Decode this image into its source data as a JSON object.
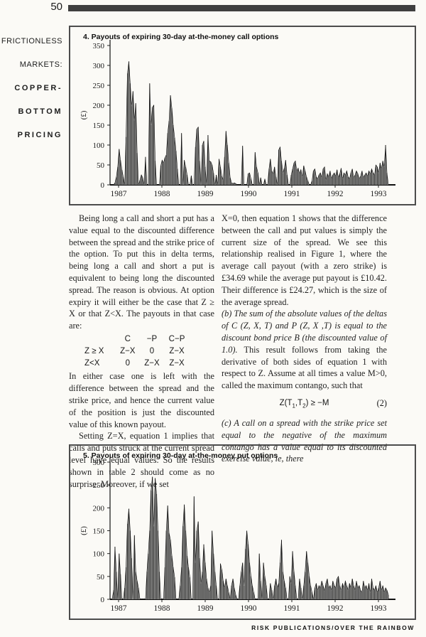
{
  "page": {
    "number": "50",
    "footer": "RISK PUBLICATIONS/OVER THE RAINBOW"
  },
  "sidebar": {
    "lines": [
      {
        "text": "FRICTIONLESS",
        "bold": false
      },
      {
        "text": "MARKETS:",
        "bold": false
      },
      {
        "text": "COPPER-",
        "bold": true
      },
      {
        "text": "BOTTOM",
        "bold": true
      },
      {
        "text": "PRICING",
        "bold": true
      }
    ]
  },
  "body": {
    "left_col": {
      "p1": "Being long a call and short a put has a value equal to the discounted difference between the spread and the strike price of the option. To put this in delta terms, being long a call and short a put is equivalent to being long the discounted spread. The reason is obvious. At option expiry it will either be the case that Z ≥ X or that Z<X. The payouts in that case are:",
      "table": {
        "headers": [
          "",
          "C",
          "−P",
          "C−P"
        ],
        "rows": [
          [
            "Z ≥ X",
            "Z−X",
            "0",
            "Z−X"
          ],
          [
            "Z<X",
            "0",
            "Z−X",
            "Z−X"
          ]
        ]
      },
      "p2": "In either case one is left with the difference between the spread and the strike price, and hence the current value of the position is just the discounted value of this known payout.",
      "p3": "Setting Z=X, equation 1 implies that calls and puts struck at the current spread level have equal values. So the results shown in table 2 should come as no surprise. Moreover, if we set"
    },
    "right_col": {
      "p4": "X=0, then equation 1 shows that the difference between the call and put values is simply the current size of the spread. We see this relationship realised in Figure 1, where the average call payout (with a zero strike) is £34.69 while the average put payout is £10.42. Their difference is £24.27, which is the size of the average spread.",
      "p5_italic": "(b) The sum of the absolute values of the deltas of C (Z, X, T) and P (Z, X ,T) is equal to the discount bond price B (the discounted value of 1.0).",
      "p5_rest": " This result follows from taking the derivative of both sides of equation 1 with respect to Z. Assume at all times a value M>0, called the maximum contango, such that",
      "equation": {
        "pre": "Z(T",
        "sub1": "1",
        "mid": ",T",
        "sub2": "2",
        "post": ") ≥ −M",
        "number": "(2)"
      },
      "p6_italic": "(c) A call on a spread with the strike price set equal to the negative of the maximum contango has a value equal to its discounted exercise value, ie, there"
    }
  },
  "chart_data": [
    {
      "type": "bar",
      "title": "4. Payouts of expiring 30-day at-the-money call options",
      "ylabel": "(£)",
      "ylim": [
        0,
        350
      ],
      "ytick_step": 50,
      "x_year_labels": [
        "1987",
        "1988",
        "1989",
        "1990",
        "1991",
        "1992",
        "1993"
      ],
      "fill_color": "#b2b2b0",
      "line_color": "#141414",
      "values": [
        0,
        0,
        5,
        20,
        45,
        90,
        62,
        38,
        20,
        0,
        120,
        280,
        310,
        255,
        198,
        235,
        162,
        205,
        80,
        0,
        12,
        25,
        18,
        0,
        70,
        0,
        0,
        255,
        150,
        195,
        200,
        60,
        0,
        0,
        0,
        48,
        62,
        55,
        68,
        75,
        130,
        160,
        225,
        192,
        150,
        118,
        85,
        40,
        0,
        0,
        130,
        0,
        62,
        45,
        25,
        0,
        0,
        23,
        0,
        0,
        95,
        140,
        145,
        60,
        0,
        100,
        110,
        45,
        0,
        125,
        60,
        58,
        50,
        30,
        0,
        25,
        0,
        65,
        45,
        22,
        12,
        70,
        135,
        100,
        55,
        18,
        5,
        3,
        5,
        3,
        0,
        0,
        0,
        0,
        98,
        0,
        0,
        0,
        28,
        30,
        15,
        0,
        0,
        82,
        45,
        30,
        0,
        18,
        0,
        0,
        15,
        0,
        0,
        40,
        65,
        35,
        28,
        45,
        20,
        0,
        88,
        95,
        60,
        30,
        42,
        62,
        25,
        0,
        0,
        25,
        40,
        55,
        60,
        35,
        42,
        28,
        38,
        20,
        48,
        35,
        20,
        10,
        0,
        0,
        10,
        35,
        40,
        20,
        15,
        25,
        30,
        18,
        40,
        45,
        12,
        28,
        20,
        35,
        15,
        25,
        30,
        22,
        38,
        18,
        28,
        42,
        15,
        30,
        25,
        35,
        20,
        15,
        30,
        40,
        18,
        25,
        35,
        28,
        15,
        22,
        35,
        18,
        25,
        30,
        22,
        35,
        28,
        40,
        30,
        25,
        50,
        45,
        30,
        55,
        40,
        60,
        45,
        100,
        30,
        0
      ]
    },
    {
      "type": "bar",
      "title": "5. Payouts of expiring 30-day at-the-money put options",
      "ylabel": "(£)",
      "ylim": [
        0,
        300
      ],
      "ytick_step": 50,
      "x_year_labels": [
        "1987",
        "1988",
        "1989",
        "1990",
        "1991",
        "1992",
        "1993"
      ],
      "fill_color": "#b2b2b0",
      "line_color": "#141414",
      "values": [
        0,
        20,
        115,
        60,
        0,
        100,
        55,
        0,
        0,
        25,
        70,
        165,
        198,
        150,
        90,
        0,
        140,
        60,
        40,
        25,
        0,
        0,
        0,
        0,
        0,
        60,
        100,
        150,
        238,
        268,
        160,
        265,
        230,
        150,
        60,
        0,
        0,
        0,
        70,
        150,
        205,
        145,
        130,
        95,
        70,
        48,
        0,
        0,
        0,
        30,
        70,
        160,
        207,
        150,
        95,
        70,
        48,
        0,
        0,
        225,
        80,
        150,
        170,
        90,
        35,
        60,
        120,
        80,
        45,
        25,
        15,
        30,
        150,
        100,
        60,
        30,
        0,
        0,
        78,
        65,
        40,
        25,
        45,
        30,
        15,
        0,
        30,
        45,
        25,
        10,
        0,
        0,
        30,
        60,
        80,
        30,
        110,
        150,
        120,
        80,
        50,
        30,
        15,
        0,
        0,
        0,
        100,
        40,
        0,
        80,
        50,
        30,
        0,
        0,
        35,
        20,
        0,
        30,
        45,
        25,
        35,
        80,
        130,
        60,
        40,
        25,
        0,
        0,
        50,
        35,
        105,
        60,
        30,
        0,
        0,
        45,
        25,
        0,
        30,
        60,
        105,
        80,
        50,
        30,
        15,
        0,
        25,
        35,
        20,
        30,
        25,
        40,
        30,
        18,
        35,
        45,
        25,
        30,
        20,
        40,
        30,
        25,
        45,
        50,
        30,
        20,
        35,
        25,
        40,
        30,
        20,
        35,
        25,
        45,
        30,
        20,
        40,
        25,
        30,
        20,
        15,
        40,
        25,
        30,
        20,
        35,
        15,
        45,
        25,
        20,
        30,
        15,
        25,
        40,
        20,
        30,
        15,
        25,
        20,
        10
      ]
    }
  ]
}
